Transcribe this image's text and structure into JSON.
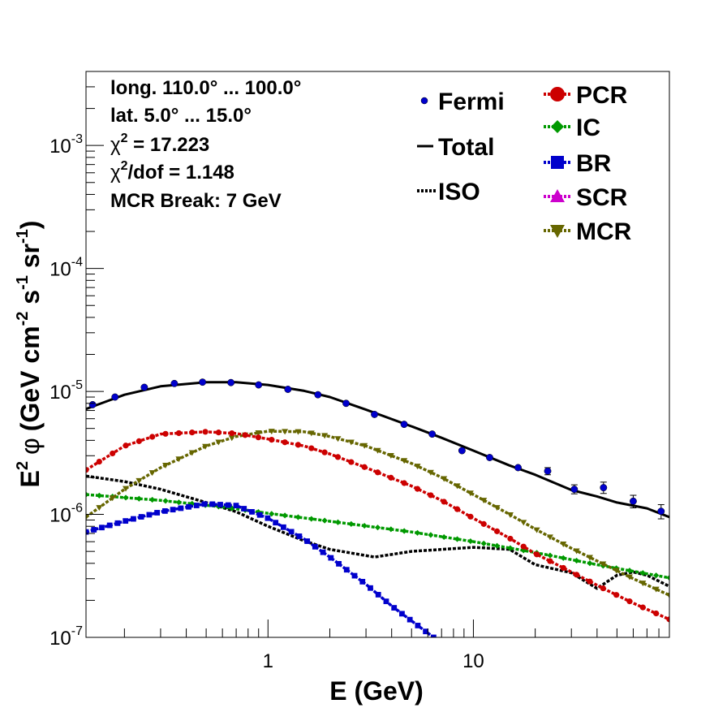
{
  "chart_data": {
    "type": "line",
    "xscale": "log",
    "yscale": "log",
    "xlim": [
      0.13,
      90
    ],
    "ylim": [
      1e-07,
      0.004
    ],
    "xlabel": "E (GeV)",
    "ylabel": {
      "base": "E",
      "sup2": "2",
      "phi": "φ",
      "units": "(GeV cm",
      "exp_cm": "-2",
      "s": " s",
      "exp_s": "-1",
      "sr": " sr",
      "exp_sr": "-1",
      "close": ")"
    },
    "x_ticks": [
      {
        "value": 1,
        "label": "1"
      },
      {
        "value": 10,
        "label": "10"
      }
    ],
    "y_ticks": [
      {
        "value": 1e-07,
        "base": "10",
        "exp": "-7"
      },
      {
        "value": 1e-06,
        "base": "10",
        "exp": "-6"
      },
      {
        "value": 1e-05,
        "base": "10",
        "exp": "-5"
      },
      {
        "value": 0.0001,
        "base": "10",
        "exp": "-4"
      },
      {
        "value": 0.001,
        "base": "10",
        "exp": "-3"
      }
    ],
    "info": {
      "line1": "long. 110.0° ... 100.0°",
      "line2": "lat. 5.0° ... 15.0°",
      "chi_symbol": "χ",
      "chi_sup": "2",
      "chi_value": " = 17.223",
      "chidof_sup": "2",
      "chidof_value": "/dof = 1.148",
      "line5": "MCR Break:  7 GeV"
    },
    "legend": {
      "fermi": "Fermi",
      "total": "Total",
      "iso": "ISO",
      "pcr": "PCR",
      "ic": "IC",
      "br": "BR",
      "scr": "SCR",
      "mcr": "MCR"
    },
    "colors": {
      "fermi": "#0000cc",
      "total": "#000000",
      "iso": "#000000",
      "pcr": "#cc0000",
      "ic": "#009900",
      "br": "#0000cc",
      "scr": "#cc00cc",
      "mcr": "#666600"
    },
    "fermi_points": {
      "x": [
        0.14,
        0.18,
        0.25,
        0.35,
        0.48,
        0.66,
        0.9,
        1.25,
        1.75,
        2.4,
        3.3,
        4.6,
        6.3,
        8.8,
        12,
        16.5,
        23,
        31,
        43,
        60,
        82
      ],
      "y": [
        7.8e-06,
        9e-06,
        1.08e-05,
        1.16e-05,
        1.19e-05,
        1.18e-05,
        1.13e-05,
        1.04e-05,
        9.4e-06,
        8e-06,
        6.5e-06,
        5.4e-06,
        4.5e-06,
        3.3e-06,
        2.9e-06,
        2.4e-06,
        2.25e-06,
        1.6e-06,
        1.65e-06,
        1.28e-06,
        1.06e-06
      ],
      "err_lo": [
        7.5e-06,
        8.8e-06,
        1.06e-05,
        1.14e-05,
        1.17e-05,
        1.16e-05,
        1.11e-05,
        1.02e-05,
        9.2e-06,
        7.8e-06,
        6.3e-06,
        5.2e-06,
        4.3e-06,
        3.15e-06,
        2.75e-06,
        2.27e-06,
        2.1e-06,
        1.47e-06,
        1.48e-06,
        1.13e-06,
        9.2e-07
      ],
      "err_hi": [
        8.1e-06,
        9.2e-06,
        1.1e-05,
        1.18e-05,
        1.21e-05,
        1.2e-05,
        1.15e-05,
        1.06e-05,
        9.6e-06,
        8.2e-06,
        6.7e-06,
        5.6e-06,
        4.7e-06,
        3.45e-06,
        3.05e-06,
        2.53e-06,
        2.4e-06,
        1.74e-06,
        1.83e-06,
        1.43e-06,
        1.2e-06
      ]
    },
    "curves": {
      "total": {
        "x": [
          0.13,
          0.2,
          0.3,
          0.5,
          0.7,
          1,
          1.5,
          2,
          3,
          5,
          7,
          10,
          15,
          20,
          30,
          40,
          50,
          70,
          90
        ],
        "y": [
          7.2e-06,
          9.4e-06,
          1.1e-05,
          1.19e-05,
          1.19e-05,
          1.13e-05,
          1.01e-05,
          9e-06,
          7.1e-06,
          5.2e-06,
          4.2e-06,
          3.3e-06,
          2.5e-06,
          2.1e-06,
          1.58e-06,
          1.4e-06,
          1.25e-06,
          1.12e-06,
          9.5e-07
        ]
      },
      "pcr": {
        "x": [
          0.13,
          0.2,
          0.3,
          0.5,
          0.7,
          1,
          1.5,
          2,
          3,
          5,
          7,
          10,
          15,
          20,
          30,
          45,
          60,
          90
        ],
        "y": [
          2.3e-06,
          3.6e-06,
          4.5e-06,
          4.7e-06,
          4.55e-06,
          4.1e-06,
          3.6e-06,
          3.1e-06,
          2.4e-06,
          1.7e-06,
          1.3e-06,
          9.3e-07,
          6.4e-07,
          4.8e-07,
          3.4e-07,
          2.4e-07,
          1.9e-07,
          1.4e-07
        ]
      },
      "mcr": {
        "x": [
          0.13,
          0.2,
          0.3,
          0.5,
          0.7,
          1,
          1.5,
          2,
          3,
          5,
          7,
          10,
          15,
          20,
          30,
          45,
          60,
          90
        ],
        "y": [
          9.5e-07,
          1.6e-06,
          2.4e-06,
          3.6e-06,
          4.3e-06,
          4.75e-06,
          4.7e-06,
          4.3e-06,
          3.6e-06,
          2.6e-06,
          2e-06,
          1.45e-06,
          1e-06,
          7.6e-07,
          5.3e-07,
          3.8e-07,
          3e-07,
          2.2e-07
        ]
      },
      "ic": {
        "x": [
          0.13,
          0.3,
          0.6,
          1,
          2,
          5,
          10,
          20,
          40,
          90
        ],
        "y": [
          1.45e-06,
          1.3e-06,
          1.15e-06,
          1.02e-06,
          8.8e-07,
          7.2e-07,
          6e-07,
          4.9e-07,
          3.9e-07,
          3.05e-07
        ]
      },
      "br": {
        "x": [
          0.13,
          0.2,
          0.3,
          0.5,
          0.7,
          1,
          1.5,
          2,
          3,
          4,
          6.4
        ],
        "y": [
          7.2e-07,
          8.8e-07,
          1.05e-06,
          1.22e-06,
          1.18e-06,
          9.3e-07,
          6.3e-07,
          4.5e-07,
          2.7e-07,
          1.8e-07,
          1e-07
        ]
      },
      "iso": {
        "x": [
          0.13,
          0.2,
          0.3,
          0.5,
          0.7,
          1,
          1.5,
          2,
          3.3,
          5,
          10,
          15,
          20,
          30,
          40,
          50,
          60,
          70,
          90
        ],
        "y": [
          2.05e-06,
          1.85e-06,
          1.6e-06,
          1.25e-06,
          1.05e-06,
          8e-07,
          6.1e-07,
          5.2e-07,
          4.5e-07,
          5e-07,
          5.4e-07,
          5.2e-07,
          3.9e-07,
          3.35e-07,
          2.5e-07,
          3.2e-07,
          3.4e-07,
          3.2e-07,
          2.6e-07
        ]
      }
    }
  }
}
